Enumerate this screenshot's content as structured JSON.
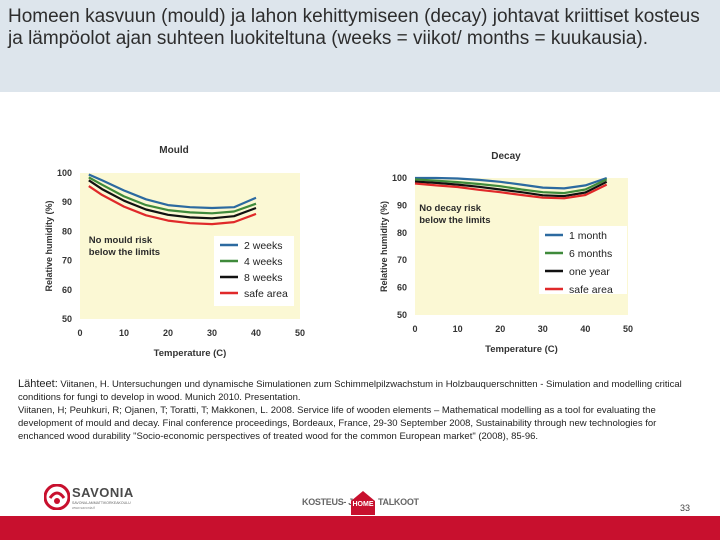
{
  "title": "Homeen kasvuun (mould) ja lahon kehittymiseen (decay)  johtavat kriittiset kosteus ja lämpöolot ajan suhteen luokiteltuna (weeks = viikot/ months = kuukausia).",
  "colors": {
    "band": "#dde5ec",
    "plot_bg": "#fbf8d4",
    "footer": "#c8102e"
  },
  "chart_data": [
    {
      "type": "line",
      "title": "Mould",
      "xlabel": "Temperature (C)",
      "ylabel": "Relative humidity (%)",
      "xlim": [
        0,
        50
      ],
      "ylim": [
        50,
        100
      ],
      "xticks": [
        0,
        10,
        20,
        30,
        40,
        50
      ],
      "yticks": [
        50,
        60,
        70,
        80,
        90,
        100
      ],
      "grid": false,
      "legend_position": "bottom-right",
      "annotation": {
        "lines": [
          "No mould risk",
          "below the limits"
        ],
        "x": 2,
        "y": 76
      },
      "series": [
        {
          "name": "2 weeks",
          "color": "#2c6aa0",
          "x": [
            2,
            5,
            10,
            15,
            20,
            25,
            30,
            35,
            40
          ],
          "values": [
            99.5,
            97.5,
            94,
            91,
            89,
            88.3,
            88,
            88.3,
            91.5
          ]
        },
        {
          "name": "4 weeks",
          "color": "#3f8a3b",
          "x": [
            2,
            5,
            10,
            15,
            20,
            25,
            30,
            35,
            40
          ],
          "values": [
            98.5,
            96,
            92,
            89,
            87.3,
            86.5,
            86.2,
            86.8,
            89.5
          ]
        },
        {
          "name": "8 weeks",
          "color": "#111111",
          "x": [
            2,
            5,
            10,
            15,
            20,
            25,
            30,
            35,
            40
          ],
          "values": [
            97.5,
            94.5,
            90.5,
            87.5,
            85.7,
            84.8,
            84.5,
            85.2,
            88
          ]
        },
        {
          "name": "safe area",
          "color": "#e0292a",
          "x": [
            2,
            5,
            10,
            15,
            20,
            25,
            30,
            35,
            40
          ],
          "values": [
            95.5,
            92.5,
            88.5,
            85.5,
            83.7,
            82.8,
            82.5,
            83.2,
            86
          ]
        }
      ]
    },
    {
      "type": "line",
      "title": "Decay",
      "xlabel": "Temperature (C)",
      "ylabel": "Relative humidity (%)",
      "xlim": [
        0,
        50
      ],
      "ylim": [
        50,
        100
      ],
      "xticks": [
        0,
        10,
        20,
        30,
        40,
        50
      ],
      "yticks": [
        50,
        60,
        70,
        80,
        90,
        100
      ],
      "grid": false,
      "legend_position": "bottom-right",
      "annotation": {
        "lines": [
          "No decay risk",
          "below the limits"
        ],
        "x": 1,
        "y": 88
      },
      "series": [
        {
          "name": "1 month",
          "color": "#2c6aa0",
          "x": [
            0,
            5,
            10,
            15,
            20,
            25,
            30,
            35,
            40,
            45
          ],
          "values": [
            100,
            100,
            99.8,
            99.3,
            98.6,
            97.6,
            96.5,
            96.2,
            97.3,
            100
          ]
        },
        {
          "name": "6 months",
          "color": "#3f8a3b",
          "x": [
            0,
            5,
            10,
            15,
            20,
            25,
            30,
            35,
            40,
            45
          ],
          "values": [
            99.5,
            99,
            98.5,
            97.8,
            97,
            95.8,
            94.8,
            94.5,
            95.8,
            99.5
          ]
        },
        {
          "name": "one year",
          "color": "#111111",
          "x": [
            0,
            5,
            10,
            15,
            20,
            25,
            30,
            35,
            40,
            45
          ],
          "values": [
            98.7,
            98.2,
            97.6,
            96.8,
            95.8,
            94.8,
            93.7,
            93.4,
            94.7,
            98.6
          ]
        },
        {
          "name": "safe area",
          "color": "#e0292a",
          "x": [
            0,
            5,
            10,
            15,
            20,
            25,
            30,
            35,
            40,
            45
          ],
          "values": [
            98,
            97.3,
            96.7,
            95.7,
            94.8,
            93.8,
            92.8,
            92.6,
            93.8,
            97.6
          ]
        }
      ]
    }
  ],
  "references": {
    "lead": "Lähteet:",
    "first": " Viitanen, H. Untersuchungen und dynamische Simulationen zum Schimmelpilzwachstum in Holzbauquerschnitten - Simulation and modelling critical conditions for fungi to develop in wood. Munich 2010. Presentation.",
    "second": "Viitanen, H; Peuhkuri, R; Ojanen, T; Toratti, T; Makkonen, L. 2008. Service life of wooden elements – Mathematical modelling as a tool for evaluating the development of mould and decay.  Final conference proceedings, Bordeaux, France, 29-30 September 2008, Sustainability through new technologies for enchanced wood durability \"Socio-economic perspectives of treated wood for the common European market\" (2008), 85-96."
  },
  "footer": {
    "savonia_name": "SAVONIA",
    "savonia_tag1": "SAVONIA-AMMATTIKORKEAKOULU",
    "savonia_tag2": "www.savonia.fi",
    "kosteus_left": "KOSTEUS- JA",
    "kosteus_home": "HOME",
    "kosteus_right": "TALKOOT",
    "page_number": "33"
  }
}
